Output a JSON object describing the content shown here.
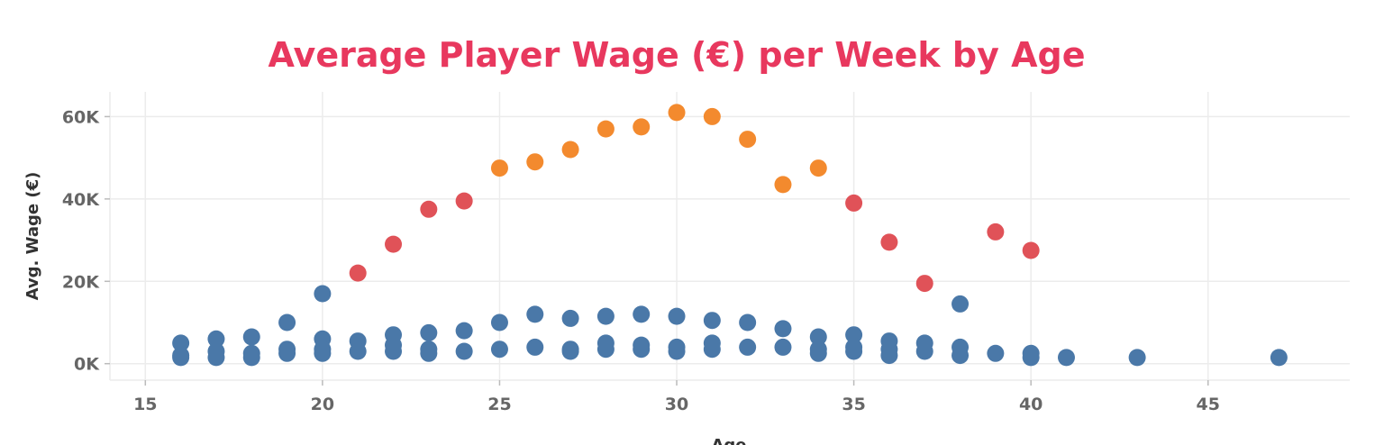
{
  "chart_data": {
    "type": "scatter",
    "title": "Average Player Wage (€) per Week by Age",
    "xlabel": "Age",
    "ylabel": "Avg. Wage (€)",
    "xlim": [
      14,
      49
    ],
    "ylim": [
      -4000,
      66000
    ],
    "xticks": [
      15,
      20,
      25,
      30,
      35,
      40,
      45
    ],
    "xtick_labels": [
      "15",
      "20",
      "25",
      "30",
      "35",
      "40",
      "45"
    ],
    "yticks": [
      0,
      20000,
      40000,
      60000
    ],
    "ytick_labels": [
      "0K",
      "20K",
      "40K",
      "60K"
    ],
    "grid": true,
    "legend": "none",
    "colors": {
      "title": "#e8385e",
      "blue": "#4a78a8",
      "red": "#e05258",
      "orange": "#f38a2e"
    },
    "series": [
      {
        "color": "blue",
        "points": [
          [
            16,
            5000
          ],
          [
            16,
            2000
          ],
          [
            16,
            1500
          ],
          [
            17,
            6000
          ],
          [
            17,
            3000
          ],
          [
            17,
            1500
          ],
          [
            18,
            6500
          ],
          [
            18,
            2500
          ],
          [
            18,
            1500
          ],
          [
            19,
            10000
          ],
          [
            19,
            3500
          ],
          [
            19,
            2500
          ],
          [
            20,
            17000
          ],
          [
            20,
            6000
          ],
          [
            20,
            3500
          ],
          [
            20,
            2500
          ],
          [
            21,
            5500
          ],
          [
            21,
            3000
          ],
          [
            22,
            7000
          ],
          [
            22,
            4500
          ],
          [
            22,
            3000
          ],
          [
            23,
            7500
          ],
          [
            23,
            3500
          ],
          [
            23,
            2500
          ],
          [
            24,
            8000
          ],
          [
            24,
            3000
          ],
          [
            25,
            10000
          ],
          [
            25,
            3500
          ],
          [
            26,
            12000
          ],
          [
            26,
            4000
          ],
          [
            27,
            11000
          ],
          [
            27,
            3500
          ],
          [
            27,
            3000
          ],
          [
            28,
            11500
          ],
          [
            28,
            5000
          ],
          [
            28,
            3500
          ],
          [
            29,
            12000
          ],
          [
            29,
            4500
          ],
          [
            29,
            3500
          ],
          [
            30,
            11500
          ],
          [
            30,
            4000
          ],
          [
            30,
            3000
          ],
          [
            31,
            10500
          ],
          [
            31,
            5000
          ],
          [
            31,
            3500
          ],
          [
            32,
            10000
          ],
          [
            32,
            4000
          ],
          [
            33,
            8500
          ],
          [
            33,
            4000
          ],
          [
            34,
            6500
          ],
          [
            34,
            3500
          ],
          [
            34,
            2500
          ],
          [
            35,
            7000
          ],
          [
            35,
            4000
          ],
          [
            35,
            3000
          ],
          [
            36,
            5500
          ],
          [
            36,
            3500
          ],
          [
            36,
            2000
          ],
          [
            37,
            5000
          ],
          [
            37,
            3000
          ],
          [
            38,
            14500
          ],
          [
            38,
            4000
          ],
          [
            38,
            2000
          ],
          [
            39,
            2500
          ],
          [
            40,
            2500
          ],
          [
            40,
            1500
          ],
          [
            41,
            1500
          ],
          [
            43,
            1500
          ],
          [
            47,
            1500
          ]
        ]
      },
      {
        "color": "red",
        "points": [
          [
            21,
            22000
          ],
          [
            22,
            29000
          ],
          [
            23,
            37500
          ],
          [
            24,
            39500
          ],
          [
            35,
            39000
          ],
          [
            36,
            29500
          ],
          [
            37,
            19500
          ],
          [
            39,
            32000
          ],
          [
            40,
            27500
          ]
        ]
      },
      {
        "color": "orange",
        "points": [
          [
            25,
            47500
          ],
          [
            26,
            49000
          ],
          [
            27,
            52000
          ],
          [
            28,
            57000
          ],
          [
            29,
            57500
          ],
          [
            30,
            61000
          ],
          [
            31,
            60000
          ],
          [
            32,
            54500
          ],
          [
            33,
            43500
          ],
          [
            34,
            47500
          ]
        ]
      }
    ]
  }
}
